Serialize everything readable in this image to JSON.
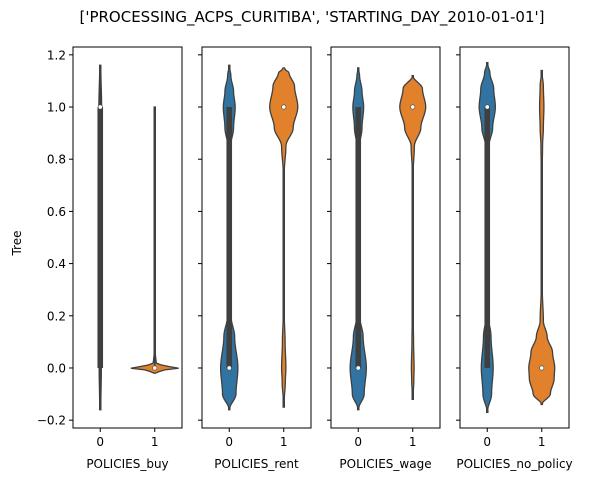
{
  "figure_title": "['PROCESSING_ACPS_CURITIBA', 'STARTING_DAY_2010-01-01']",
  "colors": {
    "group0": "#3274a1",
    "group1": "#e1812c",
    "inner": "#3f3f3f"
  },
  "chart_data": {
    "type": "violin",
    "title": "['PROCESSING_ACPS_CURITIBA', 'STARTING_DAY_2010-01-01']",
    "ylabel": "Tree",
    "ylim": [
      -0.23,
      1.23
    ],
    "yticks": [
      "−0.2",
      "0.0",
      "0.2",
      "0.4",
      "0.6",
      "0.8",
      "1.0",
      "1.2"
    ],
    "ytick_values": [
      -0.2,
      0.0,
      0.2,
      0.4,
      0.6,
      0.8,
      1.0,
      1.2
    ],
    "shared_y": true,
    "panels": [
      {
        "xlabel": "POLICIES_buy",
        "categories": [
          "0",
          "1"
        ],
        "violins": [
          {
            "category": "0",
            "median": 1.0,
            "q1": 0.0,
            "q3": 1.0,
            "whisker": [
              -0.16,
              1.16
            ],
            "ymin": -0.16,
            "ymax": 1.16,
            "profile": [
              [
                -0.16,
                0.02
              ],
              [
                0.0,
                0.04
              ],
              [
                0.5,
                0.03
              ],
              [
                1.0,
                0.05
              ],
              [
                1.16,
                0.02
              ]
            ]
          },
          {
            "category": "1",
            "median": 0.0,
            "q1": 0.0,
            "q3": 0.0,
            "whisker": [
              0.0,
              1.0
            ],
            "ymin": -0.02,
            "ymax": 1.0,
            "profile": [
              [
                -0.02,
                0.0
              ],
              [
                -0.01,
                0.25
              ],
              [
                0.0,
                0.9
              ],
              [
                0.01,
                0.25
              ],
              [
                0.02,
                0.05
              ],
              [
                0.06,
                0.02
              ],
              [
                1.0,
                0.02
              ]
            ]
          }
        ]
      },
      {
        "xlabel": "POLICIES_rent",
        "categories": [
          "0",
          "1"
        ],
        "violins": [
          {
            "category": "0",
            "median": 0.0,
            "q1": 0.0,
            "q3": 1.0,
            "whisker": [
              0.0,
              1.0
            ],
            "ymin": -0.16,
            "ymax": 1.16,
            "profile": [
              [
                -0.16,
                0.0
              ],
              [
                -0.1,
                0.25
              ],
              [
                0.0,
                0.32
              ],
              [
                0.12,
                0.2
              ],
              [
                0.2,
                0.06
              ],
              [
                0.3,
                0.02
              ],
              [
                0.5,
                0.015
              ],
              [
                0.75,
                0.02
              ],
              [
                0.85,
                0.05
              ],
              [
                0.92,
                0.16
              ],
              [
                1.0,
                0.22
              ],
              [
                1.06,
                0.16
              ],
              [
                1.12,
                0.06
              ],
              [
                1.16,
                0.0
              ]
            ]
          },
          {
            "category": "1",
            "median": 1.0,
            "q1": 1.0,
            "q3": 1.0,
            "whisker": [
              1.0,
              1.0
            ],
            "ymin": -0.15,
            "ymax": 1.15,
            "profile": [
              [
                -0.15,
                0.0
              ],
              [
                -0.05,
                0.06
              ],
              [
                0.0,
                0.08
              ],
              [
                0.1,
                0.05
              ],
              [
                0.2,
                0.02
              ],
              [
                0.5,
                0.01
              ],
              [
                0.75,
                0.02
              ],
              [
                0.85,
                0.08
              ],
              [
                0.92,
                0.35
              ],
              [
                1.0,
                0.52
              ],
              [
                1.08,
                0.4
              ],
              [
                1.13,
                0.2
              ],
              [
                1.15,
                0.0
              ]
            ]
          }
        ]
      },
      {
        "xlabel": "POLICIES_wage",
        "categories": [
          "0",
          "1"
        ],
        "violins": [
          {
            "category": "0",
            "median": 0.0,
            "q1": 0.0,
            "q3": 1.0,
            "whisker": [
              0.0,
              1.0
            ],
            "ymin": -0.16,
            "ymax": 1.15,
            "profile": [
              [
                -0.16,
                0.0
              ],
              [
                -0.1,
                0.22
              ],
              [
                0.0,
                0.3
              ],
              [
                0.12,
                0.18
              ],
              [
                0.2,
                0.05
              ],
              [
                0.3,
                0.02
              ],
              [
                0.5,
                0.015
              ],
              [
                0.75,
                0.02
              ],
              [
                0.85,
                0.05
              ],
              [
                0.92,
                0.14
              ],
              [
                1.0,
                0.2
              ],
              [
                1.06,
                0.14
              ],
              [
                1.12,
                0.05
              ],
              [
                1.15,
                0.0
              ]
            ]
          },
          {
            "category": "1",
            "median": 1.0,
            "q1": 1.0,
            "q3": 1.0,
            "whisker": [
              1.0,
              1.0
            ],
            "ymin": -0.12,
            "ymax": 1.12,
            "profile": [
              [
                -0.12,
                0.0
              ],
              [
                -0.05,
                0.04
              ],
              [
                0.0,
                0.05
              ],
              [
                0.1,
                0.03
              ],
              [
                0.2,
                0.015
              ],
              [
                0.5,
                0.01
              ],
              [
                0.75,
                0.015
              ],
              [
                0.85,
                0.06
              ],
              [
                0.92,
                0.3
              ],
              [
                1.0,
                0.48
              ],
              [
                1.07,
                0.36
              ],
              [
                1.12,
                0.0
              ]
            ]
          }
        ]
      },
      {
        "xlabel": "POLICIES_no_policy",
        "categories": [
          "0",
          "1"
        ],
        "violins": [
          {
            "category": "0",
            "median": 1.0,
            "q1": 0.0,
            "q3": 1.0,
            "whisker": [
              0.0,
              1.0
            ],
            "ymin": -0.17,
            "ymax": 1.17,
            "profile": [
              [
                -0.17,
                0.0
              ],
              [
                -0.1,
                0.16
              ],
              [
                0.0,
                0.22
              ],
              [
                0.12,
                0.14
              ],
              [
                0.2,
                0.04
              ],
              [
                0.3,
                0.02
              ],
              [
                0.5,
                0.015
              ],
              [
                0.75,
                0.02
              ],
              [
                0.85,
                0.06
              ],
              [
                0.92,
                0.2
              ],
              [
                1.0,
                0.3
              ],
              [
                1.07,
                0.24
              ],
              [
                1.13,
                0.1
              ],
              [
                1.17,
                0.0
              ]
            ]
          },
          {
            "category": "1",
            "median": 0.0,
            "q1": 0.0,
            "q3": 0.0,
            "whisker": [
              0.0,
              0.0
            ],
            "ymin": -0.14,
            "ymax": 1.14,
            "profile": [
              [
                -0.14,
                0.0
              ],
              [
                -0.1,
                0.32
              ],
              [
                -0.04,
                0.46
              ],
              [
                0.0,
                0.48
              ],
              [
                0.06,
                0.4
              ],
              [
                0.12,
                0.2
              ],
              [
                0.18,
                0.06
              ],
              [
                0.3,
                0.02
              ],
              [
                0.5,
                0.012
              ],
              [
                0.75,
                0.015
              ],
              [
                0.85,
                0.03
              ],
              [
                0.92,
                0.06
              ],
              [
                1.0,
                0.08
              ],
              [
                1.08,
                0.06
              ],
              [
                1.14,
                0.0
              ]
            ]
          }
        ]
      }
    ]
  }
}
